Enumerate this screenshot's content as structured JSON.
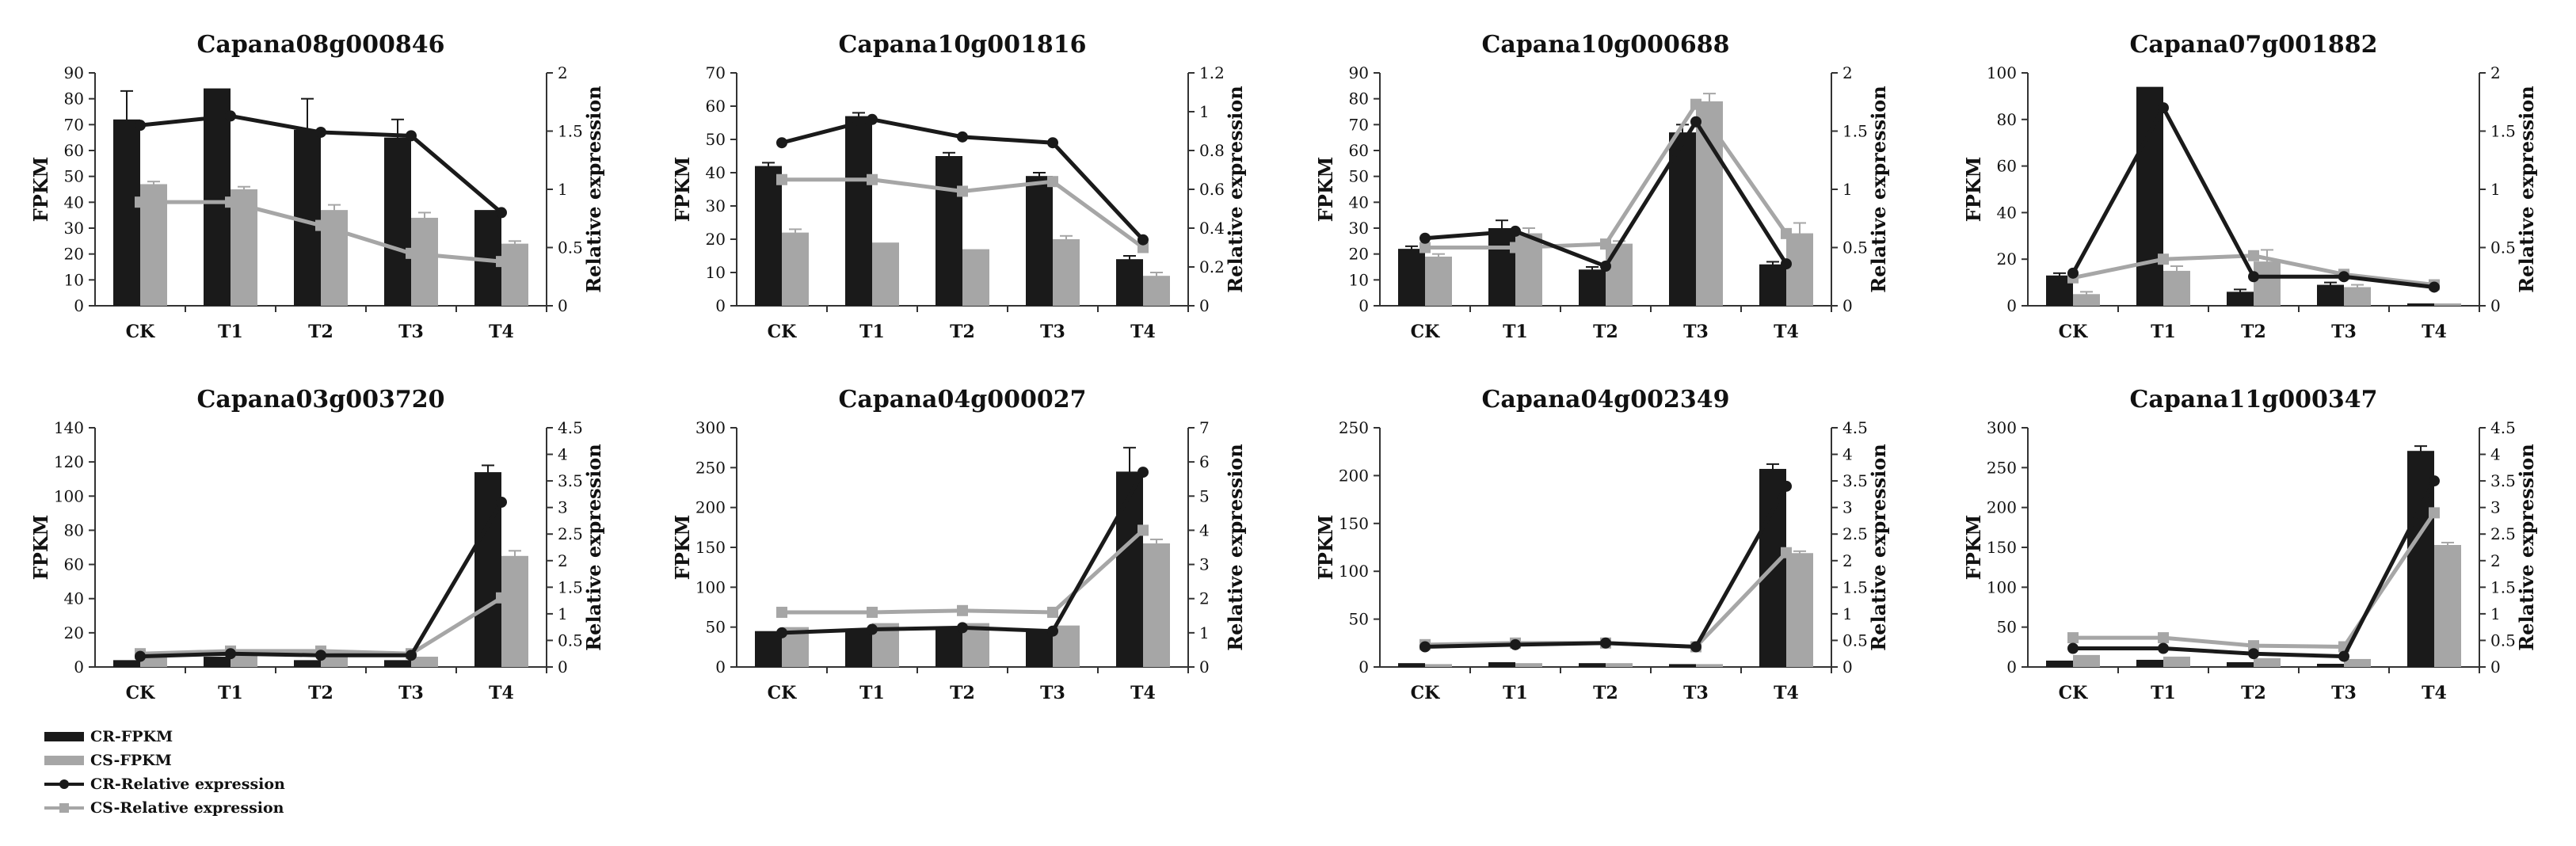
{
  "colors": {
    "cr": "#1a1a1a",
    "cs": "#a6a6a6"
  },
  "legend": {
    "cr_fpkm": "CR-FPKM",
    "cs_fpkm": "CS-FPKM",
    "cr_rel": "CR-Relative expression",
    "cs_rel": "CS-Relative expression"
  },
  "chart_data": [
    {
      "type": "bar+line",
      "title": "Capana08g000846",
      "ylabel": "FPKM",
      "y2label": "Relative expression",
      "categories": [
        "CK",
        "T1",
        "T2",
        "T3",
        "T4"
      ],
      "ylim": [
        0,
        90
      ],
      "yticks": [
        0,
        10,
        20,
        30,
        40,
        50,
        60,
        70,
        80,
        90
      ],
      "y2lim": [
        0,
        2
      ],
      "y2ticks": [
        "0",
        "0.5",
        "1",
        "1.5",
        "2"
      ],
      "series": [
        {
          "name": "CR-FPKM",
          "kind": "bar",
          "values": [
            72,
            84,
            68,
            65,
            37
          ],
          "errors": [
            11,
            0,
            12,
            7,
            0
          ]
        },
        {
          "name": "CS-FPKM",
          "kind": "bar",
          "values": [
            47,
            45,
            37,
            34,
            24
          ],
          "errors": [
            1,
            1,
            2,
            2,
            1
          ]
        },
        {
          "name": "CR-Relative expression",
          "kind": "line",
          "values": [
            1.55,
            1.63,
            1.49,
            1.46,
            0.8
          ]
        },
        {
          "name": "CS-Relative expression",
          "kind": "line",
          "values": [
            0.89,
            0.89,
            0.69,
            0.45,
            0.38
          ]
        }
      ]
    },
    {
      "type": "bar+line",
      "title": "Capana10g001816",
      "ylabel": "FPKM",
      "y2label": "Relative expression",
      "categories": [
        "CK",
        "T1",
        "T2",
        "T3",
        "T4"
      ],
      "ylim": [
        0,
        70
      ],
      "yticks": [
        0,
        10,
        20,
        30,
        40,
        50,
        60,
        70
      ],
      "y2lim": [
        0,
        1.2
      ],
      "y2ticks": [
        "0",
        "0.2",
        "0.4",
        "0.6",
        "0.8",
        "1",
        "1.2"
      ],
      "series": [
        {
          "name": "CR-FPKM",
          "kind": "bar",
          "values": [
            42,
            57,
            45,
            39,
            14
          ],
          "errors": [
            1,
            1,
            1,
            1,
            1
          ]
        },
        {
          "name": "CS-FPKM",
          "kind": "bar",
          "values": [
            22,
            19,
            17,
            20,
            9
          ],
          "errors": [
            1,
            0,
            0,
            1,
            1
          ]
        },
        {
          "name": "CR-Relative expression",
          "kind": "line",
          "values": [
            0.84,
            0.96,
            0.87,
            0.84,
            0.34
          ]
        },
        {
          "name": "CS-Relative expression",
          "kind": "line",
          "values": [
            0.65,
            0.65,
            0.59,
            0.64,
            0.3
          ]
        }
      ]
    },
    {
      "type": "bar+line",
      "title": "Capana10g000688",
      "ylabel": "FPKM",
      "y2label": "Relative expression",
      "categories": [
        "CK",
        "T1",
        "T2",
        "T3",
        "T4"
      ],
      "ylim": [
        0,
        90
      ],
      "yticks": [
        0,
        10,
        20,
        30,
        40,
        50,
        60,
        70,
        80,
        90
      ],
      "y2lim": [
        0,
        2
      ],
      "y2ticks": [
        "0",
        "0.5",
        "1",
        "1.5",
        "2"
      ],
      "series": [
        {
          "name": "CR-FPKM",
          "kind": "bar",
          "values": [
            22,
            30,
            14,
            67,
            16
          ],
          "errors": [
            1,
            3,
            1,
            3,
            1
          ]
        },
        {
          "name": "CS-FPKM",
          "kind": "bar",
          "values": [
            19,
            28,
            24,
            79,
            28
          ],
          "errors": [
            1,
            2,
            1,
            3,
            4
          ]
        },
        {
          "name": "CR-Relative expression",
          "kind": "line",
          "values": [
            0.58,
            0.64,
            0.34,
            1.58,
            0.36
          ]
        },
        {
          "name": "CS-Relative expression",
          "kind": "line",
          "values": [
            0.5,
            0.5,
            0.53,
            1.73,
            0.62
          ]
        }
      ]
    },
    {
      "type": "bar+line",
      "title": "Capana07g001882",
      "ylabel": "FPKM",
      "y2label": "Relative expression",
      "categories": [
        "CK",
        "T1",
        "T2",
        "T3",
        "T4"
      ],
      "ylim": [
        0,
        100
      ],
      "yticks": [
        0,
        20,
        40,
        60,
        80,
        100
      ],
      "y2lim": [
        0,
        2
      ],
      "y2ticks": [
        "0",
        "0.5",
        "1",
        "1.5",
        "2"
      ],
      "series": [
        {
          "name": "CR-FPKM",
          "kind": "bar",
          "values": [
            13,
            94,
            6,
            9,
            1
          ],
          "errors": [
            1,
            0,
            1,
            1,
            0
          ]
        },
        {
          "name": "CS-FPKM",
          "kind": "bar",
          "values": [
            5,
            15,
            19,
            8,
            1
          ],
          "errors": [
            1,
            2,
            5,
            1,
            0
          ]
        },
        {
          "name": "CR-Relative expression",
          "kind": "line",
          "values": [
            0.28,
            1.7,
            0.25,
            0.25,
            0.16
          ]
        },
        {
          "name": "CS-Relative expression",
          "kind": "line",
          "values": [
            0.24,
            0.4,
            0.43,
            0.27,
            0.18
          ]
        }
      ]
    },
    {
      "type": "bar+line",
      "title": "Capana03g003720",
      "ylabel": "FPKM",
      "y2label": "Relative expression",
      "categories": [
        "CK",
        "T1",
        "T2",
        "T3",
        "T4"
      ],
      "ylim": [
        0,
        140
      ],
      "yticks": [
        0,
        20,
        40,
        60,
        80,
        100,
        120,
        140
      ],
      "y2lim": [
        0,
        4.5
      ],
      "y2ticks": [
        "0",
        "0.5",
        "1",
        "1.5",
        "2",
        "2.5",
        "3",
        "3.5",
        "4",
        "4.5"
      ],
      "series": [
        {
          "name": "CR-FPKM",
          "kind": "bar",
          "values": [
            4,
            6,
            4,
            4,
            114
          ],
          "errors": [
            0,
            0,
            0,
            0,
            4
          ]
        },
        {
          "name": "CS-FPKM",
          "kind": "bar",
          "values": [
            7,
            9,
            8,
            6,
            65
          ],
          "errors": [
            0,
            0,
            0,
            0,
            3
          ]
        },
        {
          "name": "CR-Relative expression",
          "kind": "line",
          "values": [
            0.2,
            0.25,
            0.22,
            0.22,
            3.1
          ]
        },
        {
          "name": "CS-Relative expression",
          "kind": "line",
          "values": [
            0.25,
            0.3,
            0.3,
            0.25,
            1.3
          ]
        }
      ]
    },
    {
      "type": "bar+line",
      "title": "Capana04g000027",
      "ylabel": "FPKM",
      "y2label": "Relative expression",
      "categories": [
        "CK",
        "T1",
        "T2",
        "T3",
        "T4"
      ],
      "ylim": [
        0,
        300
      ],
      "yticks": [
        0,
        50,
        100,
        150,
        200,
        250,
        300
      ],
      "y2lim": [
        0,
        7
      ],
      "y2ticks": [
        "0",
        "1",
        "2",
        "3",
        "4",
        "5",
        "6",
        "7"
      ],
      "series": [
        {
          "name": "CR-FPKM",
          "kind": "bar",
          "values": [
            45,
            47,
            47,
            45,
            245
          ],
          "errors": [
            0,
            0,
            0,
            0,
            30
          ]
        },
        {
          "name": "CS-FPKM",
          "kind": "bar",
          "values": [
            50,
            55,
            55,
            52,
            155
          ],
          "errors": [
            0,
            0,
            0,
            0,
            5
          ]
        },
        {
          "name": "CR-Relative expression",
          "kind": "line",
          "values": [
            1.0,
            1.1,
            1.15,
            1.05,
            5.7
          ]
        },
        {
          "name": "CS-Relative expression",
          "kind": "line",
          "values": [
            1.6,
            1.6,
            1.65,
            1.6,
            4.0
          ]
        }
      ]
    },
    {
      "type": "bar+line",
      "title": "Capana04g002349",
      "ylabel": "FPKM",
      "y2label": "Relative expression",
      "categories": [
        "CK",
        "T1",
        "T2",
        "T3",
        "T4"
      ],
      "ylim": [
        0,
        250
      ],
      "yticks": [
        0,
        50,
        100,
        150,
        200,
        250
      ],
      "y2lim": [
        0,
        4.5
      ],
      "y2ticks": [
        "0",
        "0.5",
        "1",
        "1.5",
        "2",
        "2.5",
        "3",
        "3.5",
        "4",
        "4.5"
      ],
      "series": [
        {
          "name": "CR-FPKM",
          "kind": "bar",
          "values": [
            4,
            5,
            4,
            3,
            207
          ],
          "errors": [
            0,
            0,
            0,
            0,
            5
          ]
        },
        {
          "name": "CS-FPKM",
          "kind": "bar",
          "values": [
            3,
            4,
            4,
            3,
            119
          ],
          "errors": [
            0,
            0,
            0,
            0,
            2
          ]
        },
        {
          "name": "CR-Relative expression",
          "kind": "line",
          "values": [
            0.38,
            0.42,
            0.45,
            0.38,
            3.4
          ]
        },
        {
          "name": "CS-Relative expression",
          "kind": "line",
          "values": [
            0.42,
            0.45,
            0.45,
            0.38,
            2.15
          ]
        }
      ]
    },
    {
      "type": "bar+line",
      "title": "Capana11g000347",
      "ylabel": "FPKM",
      "y2label": "Relative expression",
      "categories": [
        "CK",
        "T1",
        "T2",
        "T3",
        "T4"
      ],
      "ylim": [
        0,
        300
      ],
      "yticks": [
        0,
        50,
        100,
        150,
        200,
        250,
        300
      ],
      "y2lim": [
        0,
        4.5
      ],
      "y2ticks": [
        "0",
        "0.5",
        "1",
        "1.5",
        "2",
        "2.5",
        "3",
        "3.5",
        "4",
        "4.5"
      ],
      "series": [
        {
          "name": "CR-FPKM",
          "kind": "bar",
          "values": [
            8,
            9,
            6,
            4,
            271
          ],
          "errors": [
            0,
            0,
            0,
            0,
            6
          ]
        },
        {
          "name": "CS-FPKM",
          "kind": "bar",
          "values": [
            15,
            13,
            11,
            10,
            153
          ],
          "errors": [
            0,
            0,
            0,
            0,
            3
          ]
        },
        {
          "name": "CR-Relative expression",
          "kind": "line",
          "values": [
            0.35,
            0.35,
            0.25,
            0.2,
            3.5
          ]
        },
        {
          "name": "CS-Relative expression",
          "kind": "line",
          "values": [
            0.55,
            0.55,
            0.4,
            0.38,
            2.9
          ]
        }
      ]
    }
  ]
}
